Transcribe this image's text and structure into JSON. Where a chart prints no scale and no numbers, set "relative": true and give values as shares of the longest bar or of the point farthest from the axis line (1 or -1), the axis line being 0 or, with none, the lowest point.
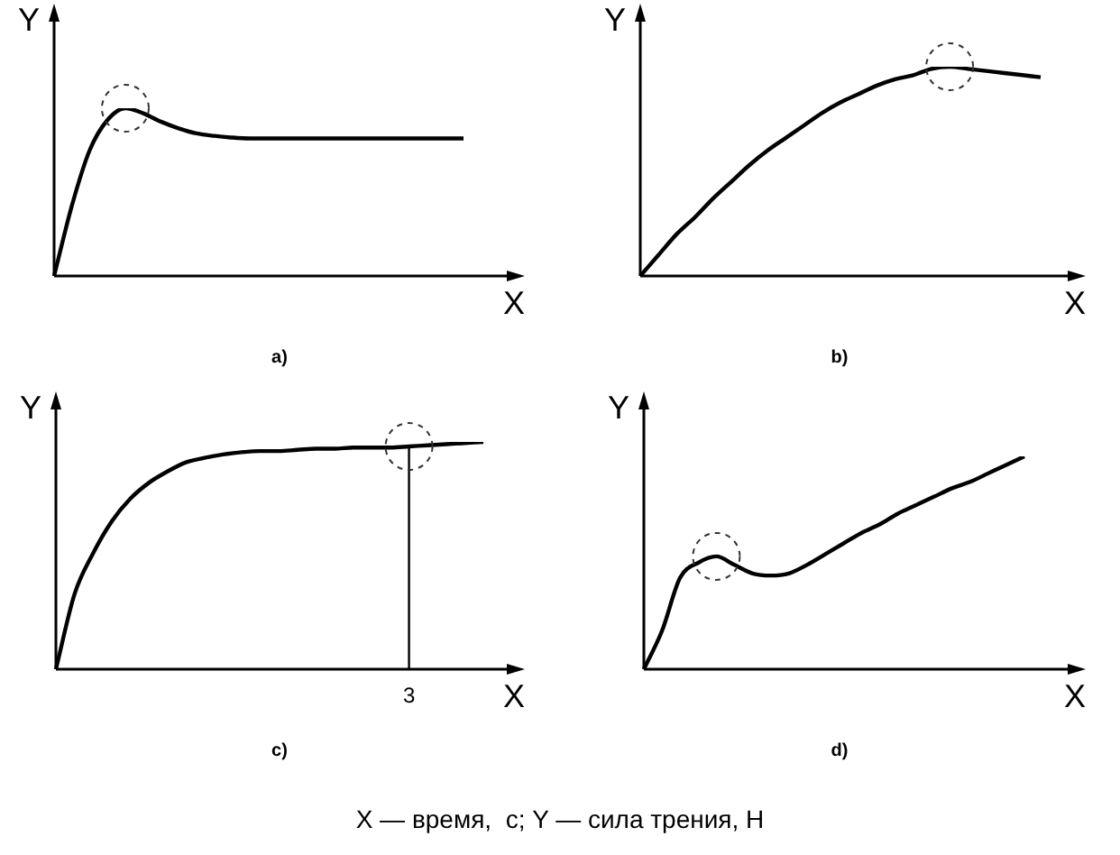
{
  "chart_data": [
    {
      "type": "line",
      "title": "a)",
      "xlabel": "X",
      "ylabel": "Y",
      "relative": true,
      "categories": [
        null,
        null,
        null,
        null,
        null,
        null,
        null,
        null,
        null,
        null,
        null,
        null,
        null,
        null,
        null,
        null,
        null,
        null,
        null,
        null,
        null,
        null,
        null,
        null
      ],
      "series": [
        {
          "color": "#000000",
          "values": [
            0,
            0.42,
            0.75,
            0.93,
            1,
            0.97,
            0.92,
            0.88,
            0.85,
            0.835,
            0.825,
            0.82,
            0.82,
            0.82,
            0.82,
            0.82,
            0.82,
            0.82,
            0.82,
            0.82,
            0.82,
            0.82,
            0.82,
            0.82
          ]
        }
      ]
    },
    {
      "type": "line",
      "title": "b)",
      "xlabel": "X",
      "ylabel": "Y",
      "relative": true,
      "categories": [
        null,
        null,
        null,
        null,
        null,
        null,
        null,
        null,
        null,
        null,
        null,
        null,
        null,
        null,
        null,
        null,
        null,
        null,
        null,
        null,
        null,
        null,
        null
      ],
      "series": [
        {
          "color": "#000000",
          "values": [
            0,
            0.1,
            0.2,
            0.28,
            0.37,
            0.45,
            0.53,
            0.6,
            0.66,
            0.72,
            0.78,
            0.83,
            0.87,
            0.91,
            0.94,
            0.96,
            0.99,
            1,
            0.99,
            0.98,
            0.97,
            0.96,
            0.95
          ]
        }
      ]
    },
    {
      "type": "line",
      "title": "c)",
      "xlabel": "X",
      "ylabel": "Y",
      "relative": true,
      "categories": [
        null,
        null,
        null,
        null,
        null,
        null,
        null,
        null,
        null,
        null,
        null,
        null,
        null,
        null,
        null,
        null,
        null,
        null,
        null,
        null,
        null,
        null,
        null,
        null
      ],
      "series": [
        {
          "color": "#000000",
          "values": [
            0,
            0.33,
            0.51,
            0.65,
            0.75,
            0.82,
            0.87,
            0.91,
            0.93,
            0.945,
            0.955,
            0.96,
            0.96,
            0.965,
            0.97,
            0.97,
            0.975,
            0.975,
            0.975,
            0.98,
            0.985,
            0.99,
            0.995,
            1
          ]
        }
      ],
      "annotations": [
        "3"
      ]
    },
    {
      "type": "line",
      "title": "d)",
      "xlabel": "X",
      "ylabel": "Y",
      "relative": true,
      "categories": [
        null,
        null,
        null,
        null,
        null,
        null,
        null,
        null,
        null,
        null,
        null,
        null,
        null,
        null,
        null,
        null,
        null,
        null,
        null,
        null,
        null,
        null
      ],
      "series": [
        {
          "color": "#000000",
          "values": [
            0,
            0.18,
            0.43,
            0.5,
            0.53,
            0.49,
            0.45,
            0.44,
            0.45,
            0.49,
            0.54,
            0.59,
            0.64,
            0.68,
            0.73,
            0.77,
            0.81,
            0.85,
            0.88,
            0.92,
            0.96,
            1
          ]
        }
      ],
      "annotations": [
        "X — время,  с; Y — сила трения, Н"
      ]
    }
  ]
}
